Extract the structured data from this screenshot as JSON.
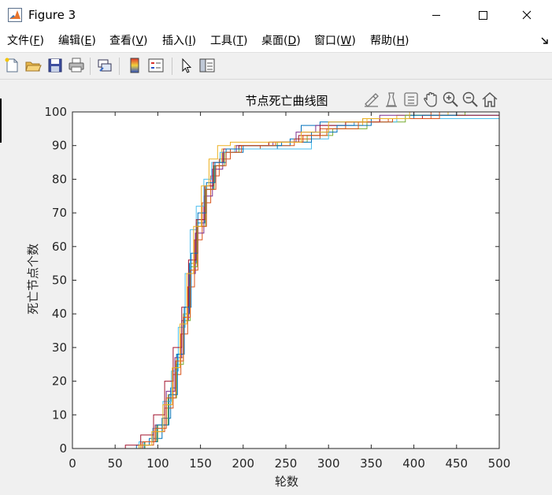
{
  "window": {
    "title": "Figure 3"
  },
  "menu": {
    "items": [
      {
        "label": "文件",
        "key": "F"
      },
      {
        "label": "编辑",
        "key": "E"
      },
      {
        "label": "查看",
        "key": "V"
      },
      {
        "label": "插入",
        "key": "I"
      },
      {
        "label": "工具",
        "key": "T"
      },
      {
        "label": "桌面",
        "key": "D"
      },
      {
        "label": "窗口",
        "key": "W"
      },
      {
        "label": "帮助",
        "key": "H"
      }
    ]
  },
  "toolbar": {
    "icons": [
      "new-figure-icon",
      "open-file-icon",
      "save-icon",
      "print-icon",
      "link-plot-icon",
      "insert-colorbar-icon",
      "insert-legend-icon",
      "edit-plot-icon",
      "property-inspector-icon"
    ]
  },
  "axes_toolbar": {
    "icons": [
      "brush-icon",
      "data-tips-icon",
      "data-cursor-icon",
      "pan-icon",
      "zoom-in-icon",
      "zoom-out-icon",
      "restore-view-icon"
    ]
  },
  "chart_data": {
    "type": "line",
    "title": "节点死亡曲线图",
    "xlabel": "轮数",
    "ylabel": "死亡节点个数",
    "xlim": [
      0,
      500
    ],
    "ylim": [
      0,
      100
    ],
    "xticks": [
      0,
      50,
      100,
      150,
      200,
      250,
      300,
      350,
      400,
      450,
      500
    ],
    "yticks": [
      0,
      10,
      20,
      30,
      40,
      50,
      60,
      70,
      80,
      90,
      100
    ],
    "grid": false,
    "legend": "none",
    "series": [
      {
        "color": "#0072BD",
        "points": [
          [
            0,
            0
          ],
          [
            55,
            0
          ],
          [
            75,
            1
          ],
          [
            90,
            3
          ],
          [
            105,
            9
          ],
          [
            115,
            18
          ],
          [
            122,
            28
          ],
          [
            130,
            40
          ],
          [
            137,
            55
          ],
          [
            145,
            67
          ],
          [
            155,
            77
          ],
          [
            165,
            84
          ],
          [
            178,
            88
          ],
          [
            200,
            89
          ],
          [
            240,
            90
          ],
          [
            255,
            92
          ],
          [
            268,
            96
          ],
          [
            290,
            97
          ],
          [
            340,
            98
          ],
          [
            400,
            99
          ],
          [
            500,
            99
          ]
        ]
      },
      {
        "color": "#D95319",
        "points": [
          [
            0,
            0
          ],
          [
            65,
            0
          ],
          [
            80,
            1
          ],
          [
            95,
            5
          ],
          [
            108,
            12
          ],
          [
            118,
            22
          ],
          [
            127,
            34
          ],
          [
            135,
            48
          ],
          [
            143,
            62
          ],
          [
            152,
            73
          ],
          [
            162,
            81
          ],
          [
            172,
            86
          ],
          [
            185,
            89
          ],
          [
            220,
            90
          ],
          [
            260,
            92
          ],
          [
            290,
            95
          ],
          [
            320,
            97
          ],
          [
            370,
            98
          ],
          [
            420,
            100
          ],
          [
            500,
            100
          ]
        ]
      },
      {
        "color": "#EDB120",
        "points": [
          [
            0,
            0
          ],
          [
            60,
            0
          ],
          [
            80,
            2
          ],
          [
            98,
            7
          ],
          [
            112,
            16
          ],
          [
            122,
            27
          ],
          [
            130,
            40
          ],
          [
            138,
            55
          ],
          [
            146,
            68
          ],
          [
            156,
            78
          ],
          [
            165,
            85
          ],
          [
            175,
            89
          ],
          [
            190,
            90
          ],
          [
            230,
            91
          ],
          [
            270,
            93
          ],
          [
            300,
            96
          ],
          [
            340,
            98
          ],
          [
            380,
            99
          ],
          [
            440,
            100
          ],
          [
            500,
            100
          ]
        ]
      },
      {
        "color": "#7E2F8E",
        "points": [
          [
            0,
            0
          ],
          [
            62,
            0
          ],
          [
            82,
            2
          ],
          [
            97,
            7
          ],
          [
            110,
            17
          ],
          [
            120,
            27
          ],
          [
            128,
            38
          ],
          [
            136,
            52
          ],
          [
            144,
            64
          ],
          [
            154,
            75
          ],
          [
            164,
            83
          ],
          [
            176,
            88
          ],
          [
            192,
            90
          ],
          [
            235,
            91
          ],
          [
            262,
            94
          ],
          [
            285,
            96
          ],
          [
            330,
            97
          ],
          [
            360,
            99
          ],
          [
            400,
            100
          ],
          [
            500,
            100
          ]
        ]
      },
      {
        "color": "#77AC30",
        "points": [
          [
            0,
            0
          ],
          [
            70,
            0
          ],
          [
            85,
            2
          ],
          [
            100,
            7
          ],
          [
            112,
            15
          ],
          [
            122,
            25
          ],
          [
            130,
            38
          ],
          [
            138,
            54
          ],
          [
            146,
            66
          ],
          [
            156,
            77
          ],
          [
            166,
            84
          ],
          [
            178,
            88
          ],
          [
            195,
            90
          ],
          [
            240,
            91
          ],
          [
            275,
            93
          ],
          [
            305,
            95
          ],
          [
            345,
            97
          ],
          [
            390,
            99
          ],
          [
            460,
            100
          ],
          [
            500,
            100
          ]
        ]
      },
      {
        "color": "#4DBEEE",
        "points": [
          [
            0,
            0
          ],
          [
            58,
            0
          ],
          [
            78,
            2
          ],
          [
            94,
            6
          ],
          [
            106,
            14
          ],
          [
            116,
            23
          ],
          [
            124,
            36
          ],
          [
            132,
            52
          ],
          [
            138,
            65
          ],
          [
            145,
            72
          ],
          [
            154,
            80
          ],
          [
            163,
            85
          ],
          [
            173,
            88
          ],
          [
            190,
            89
          ],
          [
            240,
            89
          ],
          [
            262,
            89
          ],
          [
            280,
            92
          ],
          [
            300,
            96
          ],
          [
            330,
            97
          ],
          [
            380,
            98
          ],
          [
            430,
            98
          ],
          [
            500,
            98
          ]
        ]
      },
      {
        "color": "#A2142F",
        "points": [
          [
            0,
            0
          ],
          [
            45,
            0
          ],
          [
            62,
            1
          ],
          [
            80,
            4
          ],
          [
            95,
            10
          ],
          [
            108,
            20
          ],
          [
            118,
            30
          ],
          [
            128,
            42
          ],
          [
            136,
            56
          ],
          [
            145,
            68
          ],
          [
            155,
            78
          ],
          [
            165,
            85
          ],
          [
            177,
            89
          ],
          [
            195,
            90
          ],
          [
            230,
            91
          ],
          [
            265,
            93
          ],
          [
            290,
            96
          ],
          [
            320,
            97
          ],
          [
            360,
            98
          ],
          [
            410,
            99
          ],
          [
            500,
            99
          ]
        ]
      },
      {
        "color": "#0072BD",
        "points": [
          [
            0,
            0
          ],
          [
            68,
            0
          ],
          [
            84,
            2
          ],
          [
            99,
            7
          ],
          [
            113,
            16
          ],
          [
            123,
            28
          ],
          [
            131,
            42
          ],
          [
            139,
            58
          ],
          [
            147,
            70
          ],
          [
            157,
            79
          ],
          [
            167,
            85
          ],
          [
            180,
            89
          ],
          [
            200,
            90
          ],
          [
            245,
            91
          ],
          [
            280,
            94
          ],
          [
            310,
            96
          ],
          [
            350,
            98
          ],
          [
            395,
            99
          ],
          [
            450,
            100
          ],
          [
            500,
            100
          ]
        ]
      },
      {
        "color": "#D95319",
        "points": [
          [
            0,
            0
          ],
          [
            64,
            0
          ],
          [
            82,
            2
          ],
          [
            97,
            6
          ],
          [
            110,
            15
          ],
          [
            121,
            26
          ],
          [
            130,
            39
          ],
          [
            138,
            53
          ],
          [
            147,
            66
          ],
          [
            157,
            77
          ],
          [
            168,
            84
          ],
          [
            180,
            88
          ],
          [
            198,
            90
          ],
          [
            238,
            91
          ],
          [
            270,
            93
          ],
          [
            298,
            95
          ],
          [
            335,
            97
          ],
          [
            375,
            98
          ],
          [
            430,
            100
          ],
          [
            500,
            100
          ]
        ]
      },
      {
        "color": "#EDB120",
        "points": [
          [
            0,
            0
          ],
          [
            60,
            0
          ],
          [
            78,
            1
          ],
          [
            93,
            5
          ],
          [
            106,
            13
          ],
          [
            117,
            24
          ],
          [
            126,
            37
          ],
          [
            134,
            52
          ],
          [
            142,
            66
          ],
          [
            151,
            78
          ],
          [
            160,
            86
          ],
          [
            170,
            90
          ],
          [
            185,
            91
          ],
          [
            230,
            91
          ],
          [
            268,
            94
          ],
          [
            300,
            97
          ],
          [
            345,
            98
          ],
          [
            395,
            100
          ],
          [
            500,
            100
          ]
        ]
      }
    ]
  }
}
